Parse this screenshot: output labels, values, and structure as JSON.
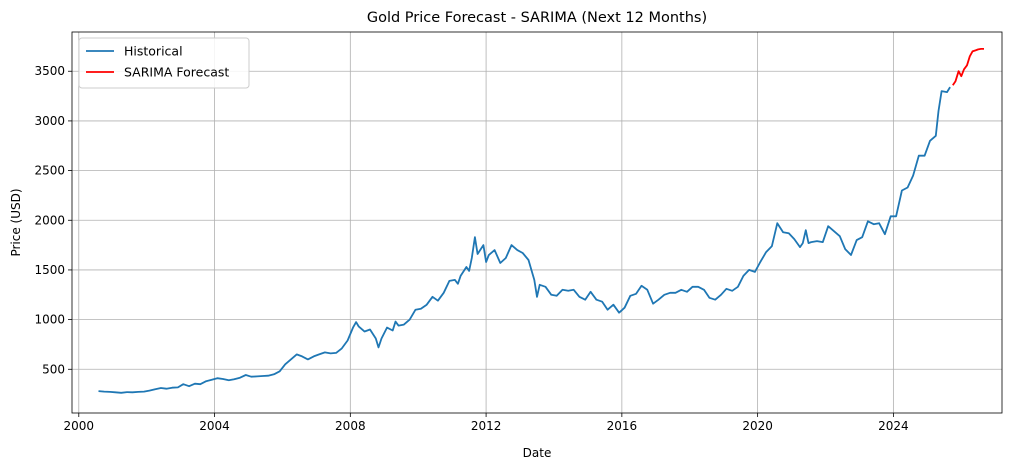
{
  "chart_data": {
    "type": "line",
    "title": "Gold Price Forecast - SARIMA (Next 12 Months)",
    "xlabel": "Date",
    "ylabel": "Price (USD)",
    "xlim": [
      1999.8,
      2027.2
    ],
    "ylim": [
      60,
      3895
    ],
    "x_ticks": [
      2000,
      2004,
      2008,
      2012,
      2016,
      2020,
      2024
    ],
    "y_ticks": [
      500,
      1000,
      1500,
      2000,
      2500,
      3000,
      3500
    ],
    "grid": true,
    "legend_position": "top-left",
    "series": [
      {
        "name": "Historical",
        "color": "#1f77b4",
        "points": [
          [
            2000.58,
            280
          ],
          [
            2000.75,
            275
          ],
          [
            2000.92,
            272
          ],
          [
            2001.08,
            268
          ],
          [
            2001.25,
            263
          ],
          [
            2001.42,
            270
          ],
          [
            2001.58,
            268
          ],
          [
            2001.75,
            272
          ],
          [
            2001.92,
            275
          ],
          [
            2002.08,
            285
          ],
          [
            2002.25,
            300
          ],
          [
            2002.42,
            312
          ],
          [
            2002.58,
            305
          ],
          [
            2002.75,
            315
          ],
          [
            2002.92,
            318
          ],
          [
            2003.08,
            350
          ],
          [
            2003.25,
            330
          ],
          [
            2003.42,
            355
          ],
          [
            2003.58,
            350
          ],
          [
            2003.75,
            380
          ],
          [
            2003.92,
            395
          ],
          [
            2004.08,
            410
          ],
          [
            2004.25,
            402
          ],
          [
            2004.42,
            390
          ],
          [
            2004.58,
            400
          ],
          [
            2004.75,
            415
          ],
          [
            2004.92,
            442
          ],
          [
            2005.08,
            425
          ],
          [
            2005.25,
            428
          ],
          [
            2005.42,
            432
          ],
          [
            2005.58,
            435
          ],
          [
            2005.75,
            450
          ],
          [
            2005.92,
            480
          ],
          [
            2006.08,
            550
          ],
          [
            2006.25,
            600
          ],
          [
            2006.42,
            650
          ],
          [
            2006.58,
            630
          ],
          [
            2006.75,
            600
          ],
          [
            2006.92,
            630
          ],
          [
            2007.08,
            650
          ],
          [
            2007.25,
            670
          ],
          [
            2007.42,
            660
          ],
          [
            2007.58,
            665
          ],
          [
            2007.75,
            710
          ],
          [
            2007.92,
            790
          ],
          [
            2008.08,
            920
          ],
          [
            2008.17,
            975
          ],
          [
            2008.25,
            930
          ],
          [
            2008.42,
            880
          ],
          [
            2008.58,
            900
          ],
          [
            2008.75,
            810
          ],
          [
            2008.83,
            720
          ],
          [
            2008.92,
            810
          ],
          [
            2009.08,
            920
          ],
          [
            2009.25,
            890
          ],
          [
            2009.33,
            980
          ],
          [
            2009.42,
            940
          ],
          [
            2009.58,
            950
          ],
          [
            2009.75,
            1000
          ],
          [
            2009.92,
            1100
          ],
          [
            2010.08,
            1110
          ],
          [
            2010.25,
            1150
          ],
          [
            2010.42,
            1230
          ],
          [
            2010.58,
            1190
          ],
          [
            2010.75,
            1270
          ],
          [
            2010.92,
            1390
          ],
          [
            2011.08,
            1400
          ],
          [
            2011.17,
            1360
          ],
          [
            2011.25,
            1440
          ],
          [
            2011.42,
            1530
          ],
          [
            2011.5,
            1490
          ],
          [
            2011.58,
            1620
          ],
          [
            2011.67,
            1830
          ],
          [
            2011.75,
            1660
          ],
          [
            2011.92,
            1750
          ],
          [
            2012.0,
            1580
          ],
          [
            2012.08,
            1650
          ],
          [
            2012.25,
            1700
          ],
          [
            2012.42,
            1570
          ],
          [
            2012.58,
            1620
          ],
          [
            2012.75,
            1750
          ],
          [
            2012.92,
            1700
          ],
          [
            2013.08,
            1670
          ],
          [
            2013.25,
            1600
          ],
          [
            2013.42,
            1400
          ],
          [
            2013.5,
            1230
          ],
          [
            2013.58,
            1350
          ],
          [
            2013.75,
            1330
          ],
          [
            2013.92,
            1250
          ],
          [
            2014.08,
            1240
          ],
          [
            2014.25,
            1300
          ],
          [
            2014.42,
            1290
          ],
          [
            2014.58,
            1300
          ],
          [
            2014.75,
            1230
          ],
          [
            2014.92,
            1200
          ],
          [
            2015.08,
            1280
          ],
          [
            2015.25,
            1200
          ],
          [
            2015.42,
            1180
          ],
          [
            2015.58,
            1100
          ],
          [
            2015.75,
            1150
          ],
          [
            2015.92,
            1070
          ],
          [
            2016.08,
            1120
          ],
          [
            2016.25,
            1240
          ],
          [
            2016.42,
            1260
          ],
          [
            2016.58,
            1340
          ],
          [
            2016.75,
            1300
          ],
          [
            2016.92,
            1160
          ],
          [
            2017.08,
            1200
          ],
          [
            2017.25,
            1250
          ],
          [
            2017.42,
            1270
          ],
          [
            2017.58,
            1270
          ],
          [
            2017.75,
            1300
          ],
          [
            2017.92,
            1280
          ],
          [
            2018.08,
            1330
          ],
          [
            2018.25,
            1330
          ],
          [
            2018.42,
            1300
          ],
          [
            2018.58,
            1220
          ],
          [
            2018.75,
            1200
          ],
          [
            2018.92,
            1250
          ],
          [
            2019.08,
            1310
          ],
          [
            2019.25,
            1290
          ],
          [
            2019.42,
            1330
          ],
          [
            2019.58,
            1440
          ],
          [
            2019.75,
            1500
          ],
          [
            2019.92,
            1480
          ],
          [
            2020.08,
            1580
          ],
          [
            2020.25,
            1680
          ],
          [
            2020.42,
            1740
          ],
          [
            2020.58,
            1970
          ],
          [
            2020.75,
            1880
          ],
          [
            2020.92,
            1870
          ],
          [
            2021.08,
            1810
          ],
          [
            2021.25,
            1730
          ],
          [
            2021.33,
            1770
          ],
          [
            2021.42,
            1900
          ],
          [
            2021.5,
            1770
          ],
          [
            2021.58,
            1780
          ],
          [
            2021.75,
            1790
          ],
          [
            2021.92,
            1780
          ],
          [
            2022.08,
            1940
          ],
          [
            2022.25,
            1890
          ],
          [
            2022.42,
            1840
          ],
          [
            2022.58,
            1710
          ],
          [
            2022.75,
            1650
          ],
          [
            2022.92,
            1800
          ],
          [
            2023.08,
            1830
          ],
          [
            2023.25,
            1990
          ],
          [
            2023.42,
            1960
          ],
          [
            2023.58,
            1970
          ],
          [
            2023.75,
            1860
          ],
          [
            2023.92,
            2040
          ],
          [
            2024.08,
            2040
          ],
          [
            2024.25,
            2300
          ],
          [
            2024.42,
            2330
          ],
          [
            2024.58,
            2450
          ],
          [
            2024.75,
            2650
          ],
          [
            2024.92,
            2650
          ],
          [
            2025.08,
            2800
          ],
          [
            2025.25,
            2850
          ],
          [
            2025.33,
            3100
          ],
          [
            2025.42,
            3300
          ],
          [
            2025.58,
            3290
          ],
          [
            2025.67,
            3340
          ]
        ]
      },
      {
        "name": "SARIMA Forecast",
        "color": "#ff0000",
        "points": [
          [
            2025.75,
            3360
          ],
          [
            2025.83,
            3400
          ],
          [
            2025.92,
            3500
          ],
          [
            2026.0,
            3450
          ],
          [
            2026.08,
            3520
          ],
          [
            2026.17,
            3560
          ],
          [
            2026.25,
            3650
          ],
          [
            2026.33,
            3700
          ],
          [
            2026.42,
            3710
          ],
          [
            2026.5,
            3720
          ],
          [
            2026.58,
            3725
          ],
          [
            2026.67,
            3725
          ]
        ]
      }
    ]
  }
}
